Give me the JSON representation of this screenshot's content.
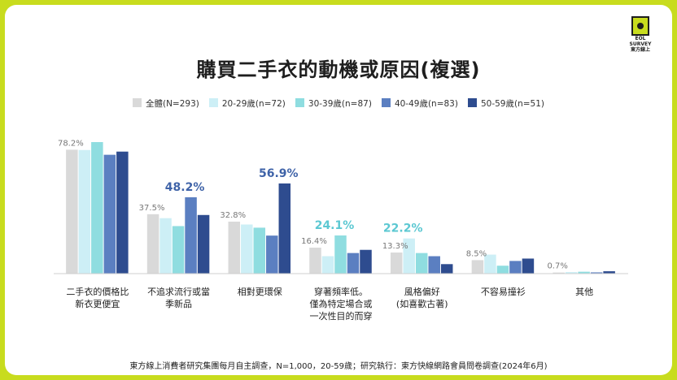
{
  "title": "購買二手衣的動機或原因(複選)",
  "logo": {
    "line1": "EOL",
    "line2": "SURVEY",
    "line3": "東方線上"
  },
  "source": "東方線上消費者研究集團每月自主調查，N=1,000，20-59歲；研究執行：東方快線網路會員問卷調查(2024年6月)",
  "colors": {
    "frame": "#c8dc1e",
    "highlight_teal": "#5cc8d2",
    "highlight_blue": "#3f63a8"
  },
  "chart_data": {
    "type": "bar",
    "categories": [
      [
        "二手衣的價格比",
        "新衣更便宜"
      ],
      [
        "不追求流行或當",
        "季新品"
      ],
      [
        "相對更環保"
      ],
      [
        "穿著頻率低。",
        "僅為特定場合或",
        "一次性目的而穿"
      ],
      [
        "風格偏好",
        "(如喜歡古著)"
      ],
      [
        "不容易撞衫"
      ],
      [
        "其他"
      ]
    ],
    "series": [
      {
        "name": "全體(N=293)",
        "color": "#d9d9d9",
        "values": [
          78.2,
          37.5,
          32.8,
          16.4,
          13.3,
          8.5,
          0.7
        ]
      },
      {
        "name": "20-29歲(n=72)",
        "color": "#cdeff6",
        "values": [
          78.0,
          35.0,
          31.0,
          11.0,
          22.2,
          12.0,
          1.0
        ]
      },
      {
        "name": "30-39歲(n=87)",
        "color": "#8fdde0",
        "values": [
          83.0,
          30.0,
          29.0,
          24.1,
          13.0,
          5.0,
          1.2
        ]
      },
      {
        "name": "40-49歲(n=83)",
        "color": "#5b7fc1",
        "values": [
          75.0,
          48.2,
          24.0,
          13.0,
          11.0,
          8.0,
          0.8
        ]
      },
      {
        "name": "50-59歲(n=51)",
        "color": "#2e4c8f",
        "values": [
          77.0,
          37.0,
          56.9,
          15.0,
          6.0,
          9.5,
          1.5
        ]
      }
    ],
    "value_labels": [
      "78.2%",
      "37.5%",
      "32.8%",
      "16.4%",
      "13.3%",
      "8.5%",
      "0.7%"
    ],
    "highlights": [
      {
        "category_index": 1,
        "series_index": 3,
        "label": "48.2%",
        "color": "#3f63a8"
      },
      {
        "category_index": 2,
        "series_index": 4,
        "label": "56.9%",
        "color": "#3f63a8"
      },
      {
        "category_index": 3,
        "series_index": 2,
        "label": "24.1%",
        "color": "#5cc8d2"
      },
      {
        "category_index": 4,
        "series_index": 1,
        "label": "22.2%",
        "color": "#5cc8d2"
      }
    ],
    "ylim": [
      0,
      100
    ],
    "grid": false,
    "legend_position": "top"
  }
}
